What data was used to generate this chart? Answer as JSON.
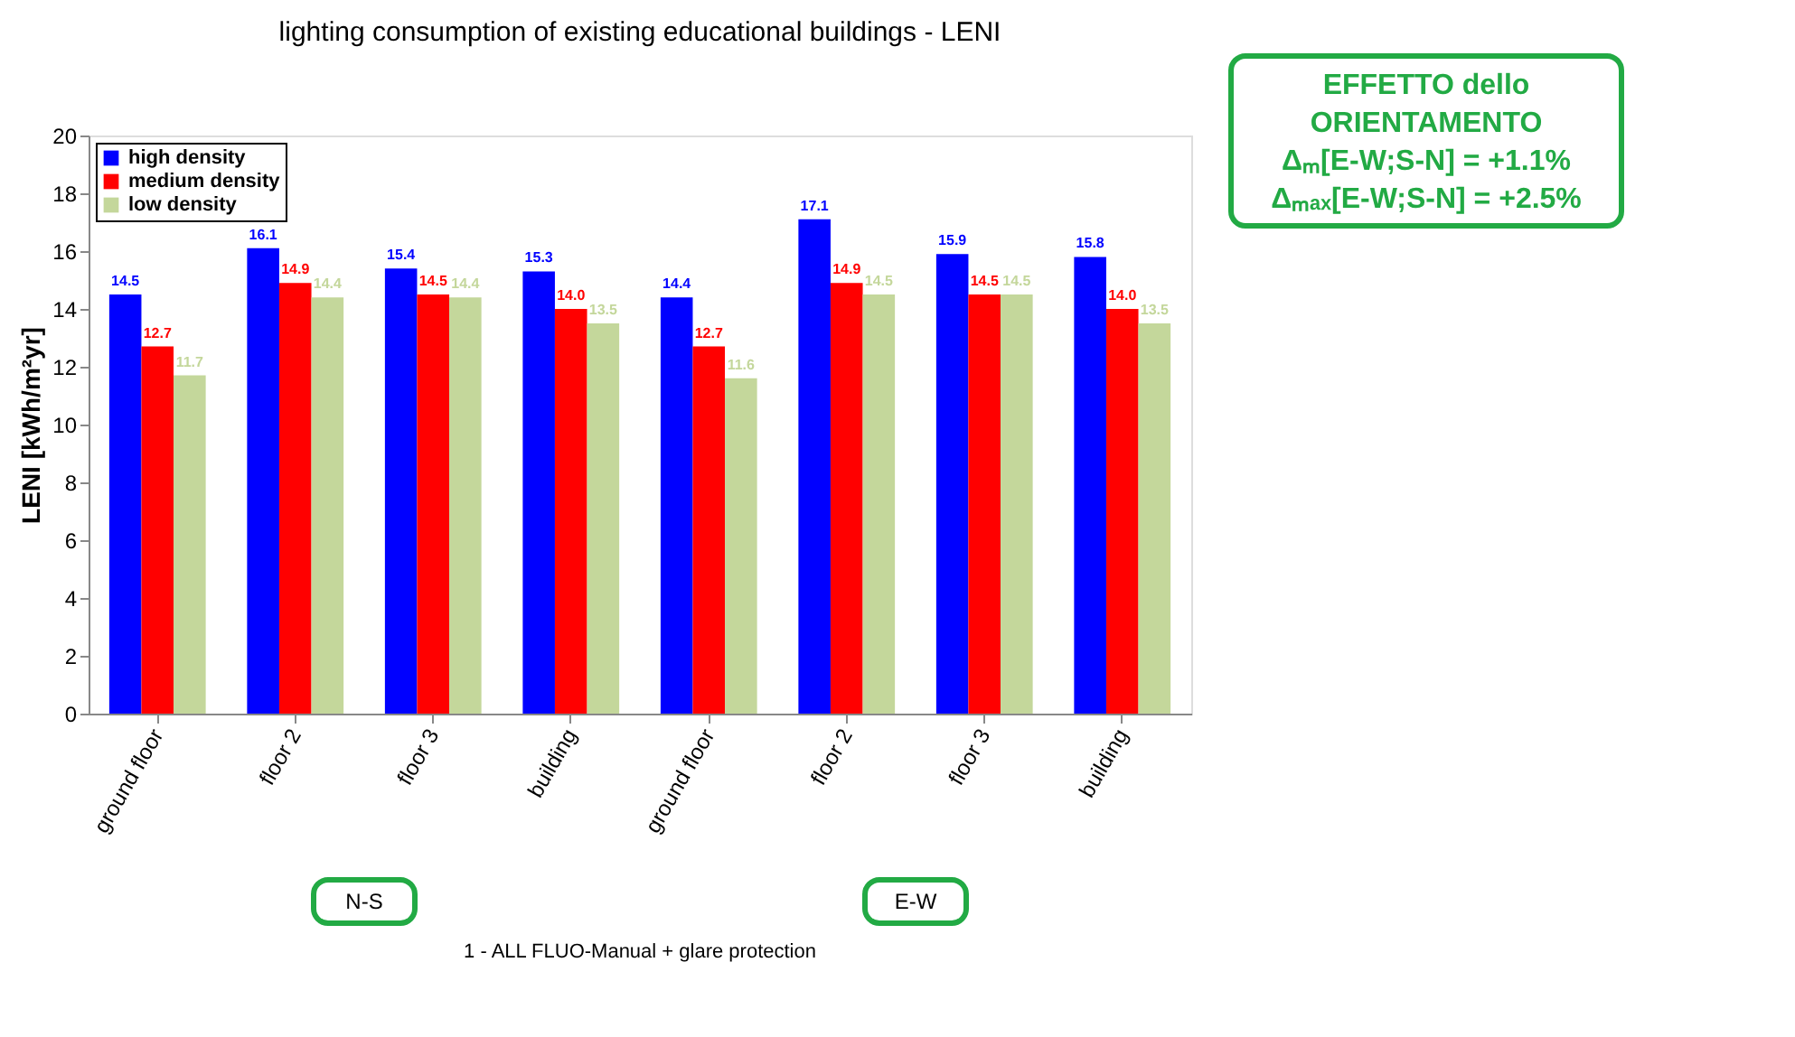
{
  "chart_data": {
    "type": "bar",
    "title": "lighting consumption of existing educational buildings  - LENI",
    "ylabel": "LENI  [kWh/m²yr]",
    "categories": [
      "ground floor",
      "floor 2",
      "floor 3",
      "building",
      "ground floor",
      "floor 2",
      "floor 3",
      "building"
    ],
    "series": [
      {
        "name": "high density",
        "color": "#0000ff",
        "values": [
          14.5,
          16.1,
          15.4,
          15.3,
          14.4,
          17.1,
          15.9,
          15.8
        ],
        "value_labels": [
          "14.5",
          "16.1",
          "15.4",
          "15.3",
          "14.4",
          "17.1",
          "15.9",
          "15.8"
        ]
      },
      {
        "name": "medium density",
        "color": "#ff0000",
        "values": [
          12.7,
          14.9,
          14.5,
          14.0,
          12.7,
          14.9,
          14.5,
          14.0
        ],
        "value_labels": [
          "12.7",
          "14.9",
          "14.5",
          "14.0",
          "12.7",
          "14.9",
          "14.5",
          "14.0"
        ]
      },
      {
        "name": "low density",
        "color": "#c4d79b",
        "values": [
          11.7,
          14.4,
          14.4,
          13.5,
          11.6,
          14.5,
          14.5,
          13.5
        ],
        "value_labels": [
          "11.7",
          "14.4",
          "14.4",
          "13.5",
          "11.6",
          "14.5",
          "14.5",
          "13.5"
        ]
      }
    ],
    "ylim": [
      0,
      20
    ],
    "yticks": [
      0,
      2,
      4,
      6,
      8,
      10,
      12,
      14,
      16,
      18,
      20
    ],
    "grid": false,
    "legend": "top left",
    "annotations": [
      "N-S",
      "E-W",
      "1 - ALL FLUO-Manual + glare protection",
      "EFFETTO dello",
      "ORIENTAMENTO",
      "Δₘ[E-W;S-N] = +1.1%",
      "Δₘₐₓ[E-W;S-N] = +2.5%"
    ]
  }
}
